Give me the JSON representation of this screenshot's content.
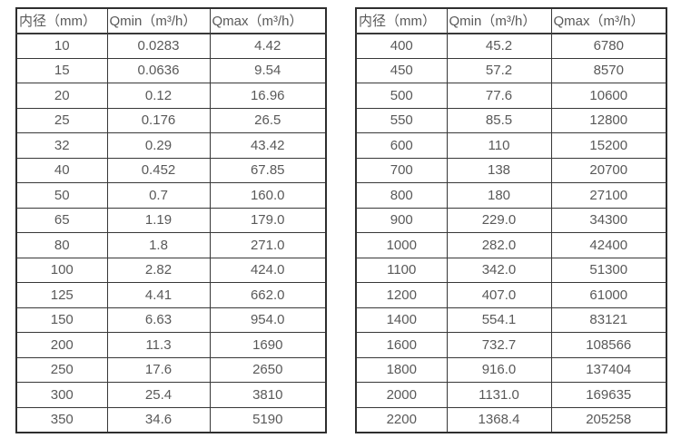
{
  "page": {
    "background": "#ffffff",
    "text_color": "#595959",
    "border_color": "#333333"
  },
  "left_table": {
    "headers": [
      "内径（mm）",
      "Qmin（m³/h）",
      "Qmax（m³/h）"
    ],
    "rows": [
      [
        "10",
        "0.0283",
        "4.42"
      ],
      [
        "15",
        "0.0636",
        "9.54"
      ],
      [
        "20",
        "0.12",
        "16.96"
      ],
      [
        "25",
        "0.176",
        "26.5"
      ],
      [
        "32",
        "0.29",
        "43.42"
      ],
      [
        "40",
        "0.452",
        "67.85"
      ],
      [
        "50",
        "0.7",
        "160.0"
      ],
      [
        "65",
        "1.19",
        "179.0"
      ],
      [
        "80",
        "1.8",
        "271.0"
      ],
      [
        "100",
        "2.82",
        "424.0"
      ],
      [
        "125",
        "4.41",
        "662.0"
      ],
      [
        "150",
        "6.63",
        "954.0"
      ],
      [
        "200",
        "11.3",
        "1690"
      ],
      [
        "250",
        "17.6",
        "2650"
      ],
      [
        "300",
        "25.4",
        "3810"
      ],
      [
        "350",
        "34.6",
        "5190"
      ]
    ]
  },
  "right_table": {
    "headers": [
      "内径（mm）",
      "Qmin（m³/h）",
      "Qmax（m³/h）"
    ],
    "rows": [
      [
        "400",
        "45.2",
        "6780"
      ],
      [
        "450",
        "57.2",
        "8570"
      ],
      [
        "500",
        "77.6",
        "10600"
      ],
      [
        "550",
        "85.5",
        "12800"
      ],
      [
        "600",
        "110",
        "15200"
      ],
      [
        "700",
        "138",
        "20700"
      ],
      [
        "800",
        "180",
        "27100"
      ],
      [
        "900",
        "229.0",
        "34300"
      ],
      [
        "1000",
        "282.0",
        "42400"
      ],
      [
        "1100",
        "342.0",
        "51300"
      ],
      [
        "1200",
        "407.0",
        "61000"
      ],
      [
        "1400",
        "554.1",
        "83121"
      ],
      [
        "1600",
        "732.7",
        "108566"
      ],
      [
        "1800",
        "916.0",
        "137404"
      ],
      [
        "2000",
        "1131.0",
        "169635"
      ],
      [
        "2200",
        "1368.4",
        "205258"
      ]
    ]
  }
}
